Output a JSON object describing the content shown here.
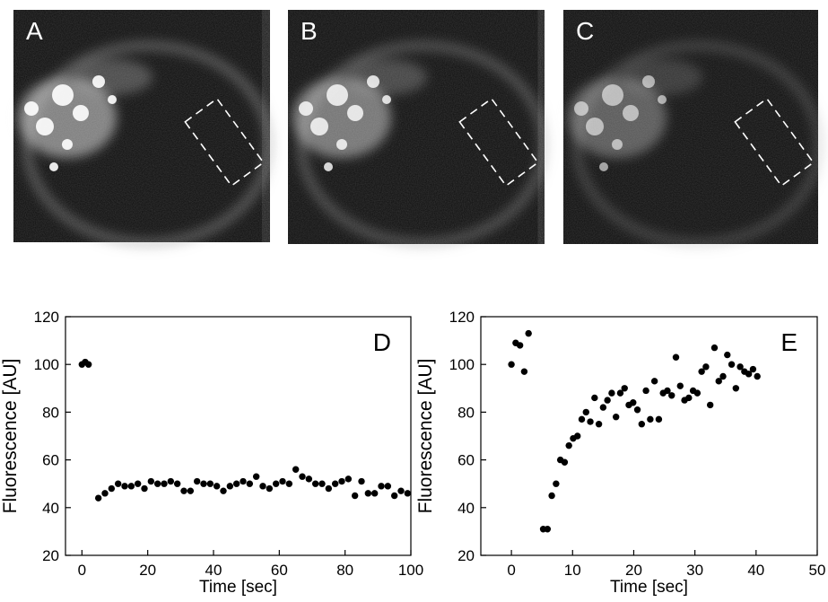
{
  "panels": [
    {
      "letter": "A",
      "brightness": 1.0
    },
    {
      "letter": "B",
      "brightness": 0.9
    },
    {
      "letter": "C",
      "brightness": 0.65
    }
  ],
  "chart_data": [
    {
      "type": "scatter",
      "letter": "D",
      "xlabel": "Time [sec]",
      "ylabel": "Fluorescence [AU]",
      "xlim": [
        -5,
        100
      ],
      "ylim": [
        20,
        120
      ],
      "xticks": [
        0,
        20,
        40,
        60,
        80,
        100
      ],
      "yticks": [
        20,
        40,
        60,
        80,
        100,
        120
      ],
      "marker_color": "#000000",
      "x": [
        0,
        1,
        2,
        5,
        7,
        9,
        11,
        13,
        15,
        17,
        19,
        21,
        23,
        25,
        27,
        29,
        31,
        33,
        35,
        37,
        39,
        41,
        43,
        45,
        47,
        49,
        51,
        53,
        55,
        57,
        59,
        61,
        63,
        65,
        67,
        69,
        71,
        73,
        75,
        77,
        79,
        81,
        83,
        85,
        87,
        89,
        91,
        93,
        95,
        97,
        99
      ],
      "y": [
        100,
        101,
        100,
        44,
        46,
        48,
        50,
        49,
        49,
        50,
        48,
        51,
        50,
        50,
        51,
        50,
        47,
        47,
        51,
        50,
        50,
        49,
        47,
        49,
        50,
        51,
        50,
        53,
        49,
        48,
        50,
        51,
        50,
        56,
        53,
        52,
        50,
        50,
        48,
        50,
        51,
        52,
        45,
        51,
        46,
        46,
        49,
        49,
        45,
        47,
        46
      ]
    },
    {
      "type": "scatter",
      "letter": "E",
      "xlabel": "Time [sec]",
      "ylabel": "Fluorescence [AU]",
      "xlim": [
        -5,
        50
      ],
      "ylim": [
        20,
        120
      ],
      "xticks": [
        0,
        10,
        20,
        30,
        40,
        50
      ],
      "yticks": [
        20,
        40,
        60,
        80,
        100,
        120
      ],
      "marker_color": "#000000",
      "x": [
        0,
        0.7,
        1.4,
        2.1,
        2.8,
        5.2,
        5.9,
        6.6,
        7.3,
        8.0,
        8.7,
        9.4,
        10.1,
        10.8,
        11.5,
        12.2,
        12.9,
        13.6,
        14.3,
        15.0,
        15.7,
        16.4,
        17.1,
        17.8,
        18.5,
        19.2,
        19.9,
        20.6,
        21.3,
        22.0,
        22.7,
        23.4,
        24.1,
        24.8,
        25.5,
        26.2,
        26.9,
        27.6,
        28.3,
        29.0,
        29.7,
        30.4,
        31.1,
        31.8,
        32.5,
        33.2,
        33.9,
        34.6,
        35.3,
        36.0,
        36.7,
        37.4,
        38.1,
        38.8,
        39.5,
        40.2
      ],
      "y": [
        100,
        109,
        108,
        97,
        113,
        31,
        31,
        45,
        50,
        60,
        59,
        66,
        69,
        70,
        77,
        80,
        76,
        86,
        75,
        82,
        85,
        88,
        78,
        88,
        90,
        83,
        84,
        81,
        75,
        89,
        77,
        93,
        77,
        88,
        89,
        87,
        103,
        91,
        85,
        86,
        89,
        88,
        97,
        99,
        83,
        107,
        93,
        95,
        104,
        100,
        90,
        99,
        97,
        96,
        98,
        95
      ]
    }
  ]
}
